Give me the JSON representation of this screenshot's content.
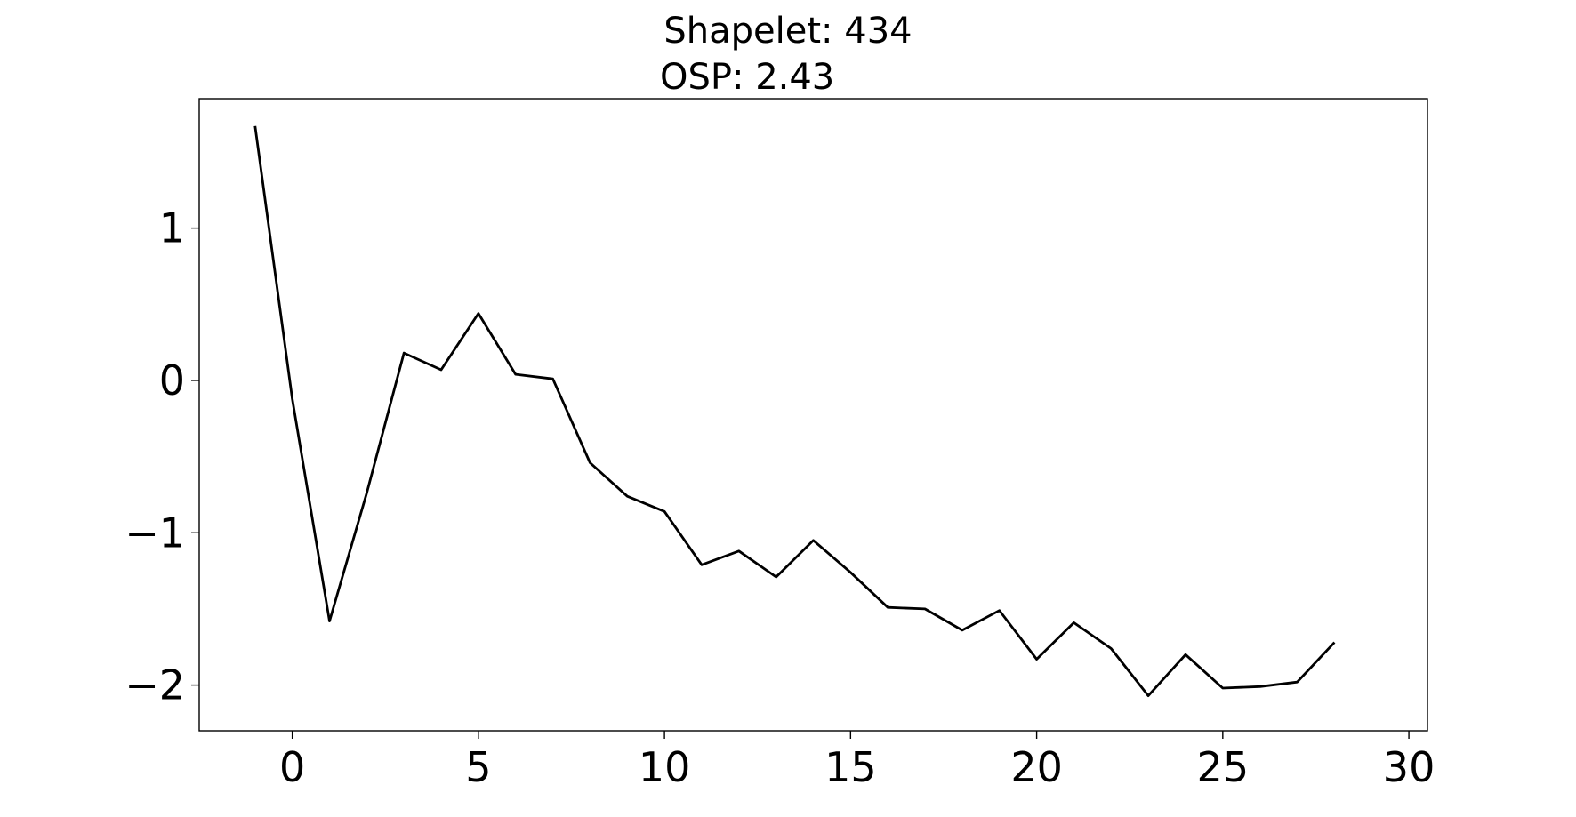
{
  "chart_data": {
    "type": "line",
    "title_lines": [
      "Shapelet: 434",
      "OSP: 2.43"
    ],
    "xlabel": "",
    "ylabel": "",
    "xlim": [
      -2.5,
      30.5
    ],
    "ylim": [
      -2.3,
      1.85
    ],
    "x_ticks": [
      0,
      5,
      10,
      15,
      20,
      25,
      30
    ],
    "y_ticks": [
      1,
      0,
      -1,
      -2
    ],
    "x_tick_labels": [
      "0",
      "5",
      "10",
      "15",
      "20",
      "25",
      "30"
    ],
    "y_tick_labels": [
      "1",
      "0",
      "−1",
      "−2"
    ],
    "grid": false,
    "series": [
      {
        "color": "#000000",
        "x": [
          -1,
          0,
          1,
          2,
          3,
          4,
          5,
          6,
          7,
          8,
          9,
          10,
          11,
          12,
          13,
          14,
          15,
          16,
          17,
          18,
          19,
          20,
          21,
          22,
          23,
          24,
          25,
          26,
          27,
          28
        ],
        "y": [
          1.67,
          -0.12,
          -1.58,
          -0.74,
          0.18,
          0.07,
          0.44,
          0.04,
          0.01,
          -0.54,
          -0.76,
          -0.86,
          -1.21,
          -1.12,
          -1.29,
          -1.05,
          -1.26,
          -1.49,
          -1.5,
          -1.64,
          -1.51,
          -1.83,
          -1.59,
          -1.76,
          -2.07,
          -1.8,
          -2.02,
          -2.01,
          -1.98,
          -1.72
        ]
      }
    ]
  }
}
